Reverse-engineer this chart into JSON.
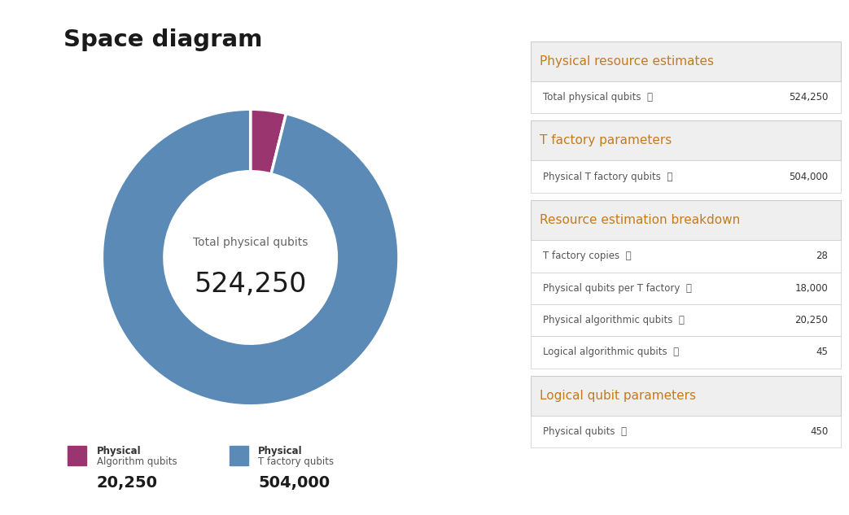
{
  "title": "Space diagram",
  "pie_values": [
    20250,
    504000
  ],
  "pie_colors": [
    "#9b3570",
    "#5a8ab5"
  ],
  "pie_labels_line1": [
    "Physical",
    "Physical"
  ],
  "pie_labels_line2": [
    "Algorithm qubits",
    "T factory qubits"
  ],
  "pie_legend_values": [
    "20,250",
    "504,000"
  ],
  "total_label": "Total physical qubits",
  "total_value": "524,250",
  "sections": [
    {
      "header": "Physical resource estimates",
      "rows": [
        {
          "label": "Total physical qubits",
          "value": "524,250"
        }
      ]
    },
    {
      "header": "T factory parameters",
      "rows": [
        {
          "label": "Physical T factory qubits",
          "value": "504,000"
        }
      ]
    },
    {
      "header": "Resource estimation breakdown",
      "rows": [
        {
          "label": "T factory copies",
          "value": "28"
        },
        {
          "label": "Physical qubits per T factory",
          "value": "18,000"
        },
        {
          "label": "Physical algorithmic qubits",
          "value": "20,250"
        },
        {
          "label": "Logical algorithmic qubits",
          "value": "45"
        }
      ]
    },
    {
      "header": "Logical qubit parameters",
      "rows": [
        {
          "label": "Physical qubits",
          "value": "450"
        }
      ]
    }
  ],
  "header_color": "#c47a1e",
  "header_bg_color": "#efefef",
  "row_bg_color": "#ffffff",
  "border_color": "#cccccc",
  "label_color": "#555555",
  "value_color": "#333333",
  "background_color": "#ffffff",
  "title_color": "#1a1a1a",
  "center_label_color": "#666666",
  "center_value_color": "#1a1a1a"
}
